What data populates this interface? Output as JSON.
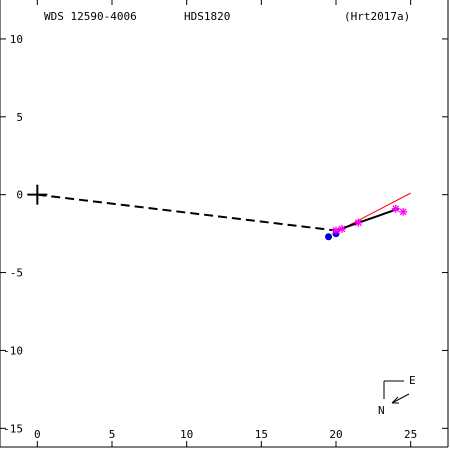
{
  "header": {
    "wds": "WDS 12590-4006",
    "hds": "HDS1820",
    "ref": "(Hrt2017a)"
  },
  "compass": {
    "east": "E",
    "north": "N"
  },
  "colors": {
    "axis": "#000000",
    "orbit_fit": "#ff0000",
    "measure_star": "#ff00ff",
    "measure_dot": "#0000cc"
  },
  "chart_data": {
    "type": "scatter",
    "title": "",
    "xlabel": "",
    "ylabel": "",
    "xlim": [
      -2.5,
      27.5
    ],
    "ylim": [
      -16.2,
      12.5
    ],
    "x_ticks": [
      0,
      5,
      10,
      15,
      20,
      25
    ],
    "y_ticks": [
      10,
      5,
      0,
      -5,
      -10,
      -15
    ],
    "x_tick_labels": [
      "0",
      "5",
      "10",
      "15",
      "20",
      "25"
    ],
    "y_tick_labels": [
      "10",
      "5",
      "0",
      "-5",
      "-10",
      "-15"
    ],
    "primary_marker": {
      "x": 0,
      "y": 0
    },
    "dashed_line": {
      "from": [
        0,
        0
      ],
      "to": [
        20.0,
        -2.3
      ]
    },
    "solid_line": {
      "from": [
        20.0,
        -2.3
      ],
      "to": [
        24.2,
        -0.9
      ]
    },
    "fit_line": {
      "from": [
        20.0,
        -2.4
      ],
      "to": [
        25.0,
        0.1
      ]
    },
    "measurements_star": [
      {
        "x": 20.0,
        "y": -2.3
      },
      {
        "x": 20.4,
        "y": -2.2
      },
      {
        "x": 21.5,
        "y": -1.8
      },
      {
        "x": 24.0,
        "y": -0.9
      },
      {
        "x": 24.5,
        "y": -1.1
      }
    ],
    "measurements_dot": [
      {
        "x": 19.5,
        "y": -2.7
      },
      {
        "x": 20.0,
        "y": -2.5
      }
    ]
  }
}
